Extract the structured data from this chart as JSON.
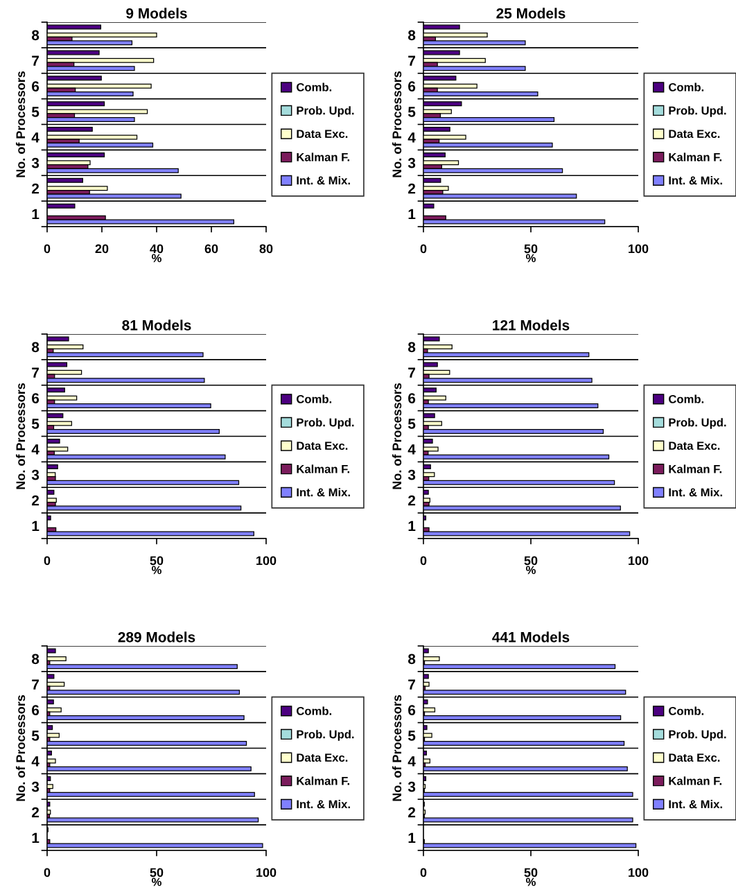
{
  "chart_data": [
    {
      "type": "bar",
      "orientation": "horizontal",
      "title": "9 Models",
      "xlabel": "%",
      "ylabel": "No. of Processors",
      "categories": [
        "8",
        "7",
        "6",
        "5",
        "4",
        "3",
        "2",
        "1"
      ],
      "xlim": [
        0,
        80
      ],
      "xticks": [
        0,
        20,
        40,
        60,
        80
      ],
      "grid": "y",
      "legend": "right",
      "series": [
        {
          "name": "Comb.",
          "color": "#4c0080",
          "values": [
            19.6,
            19.0,
            19.8,
            20.9,
            16.5,
            20.9,
            13.0,
            10.1
          ]
        },
        {
          "name": "Prob. Upd.",
          "color": "#a4dcdc",
          "values": [
            null,
            null,
            null,
            null,
            null,
            null,
            null,
            null
          ]
        },
        {
          "name": "Data Exc.",
          "color": "#ffffcc",
          "values": [
            40.0,
            38.9,
            38.0,
            36.6,
            32.8,
            15.7,
            22.0,
            null
          ]
        },
        {
          "name": "Kalman F.",
          "color": "#7b1c5c",
          "values": [
            9.1,
            9.8,
            10.3,
            10.0,
            11.7,
            14.9,
            15.5,
            21.3
          ]
        },
        {
          "name": "Int. & Mix.",
          "color": "#8080ff",
          "values": [
            31.0,
            31.9,
            31.4,
            31.9,
            38.6,
            47.9,
            48.9,
            68.2
          ]
        }
      ]
    },
    {
      "type": "bar",
      "orientation": "horizontal",
      "title": "25 Models",
      "xlabel": "%",
      "ylabel": "No. of Processors",
      "categories": [
        "8",
        "7",
        "6",
        "5",
        "4",
        "3",
        "2",
        "1"
      ],
      "xlim": [
        0,
        100
      ],
      "xticks": [
        0,
        50,
        100
      ],
      "grid": "y",
      "legend": "right",
      "series": [
        {
          "name": "Comb.",
          "color": "#4c0080",
          "values": [
            16.8,
            16.8,
            15.1,
            17.7,
            12.3,
            10.1,
            8.0,
            4.8
          ]
        },
        {
          "name": "Prob. Upd.",
          "color": "#a4dcdc",
          "values": [
            null,
            null,
            null,
            null,
            null,
            null,
            null,
            null
          ]
        },
        {
          "name": "Data Exc.",
          "color": "#ffffcc",
          "values": [
            29.7,
            28.8,
            24.9,
            13.0,
            19.7,
            16.3,
            11.6,
            null
          ]
        },
        {
          "name": "Kalman F.",
          "color": "#7b1c5c",
          "values": [
            5.6,
            6.5,
            6.5,
            7.9,
            7.3,
            8.5,
            9.0,
            10.4
          ]
        },
        {
          "name": "Int. & Mix.",
          "color": "#8080ff",
          "values": [
            47.4,
            47.4,
            53.2,
            60.8,
            60.0,
            64.7,
            71.2,
            84.4
          ]
        }
      ]
    },
    {
      "type": "bar",
      "orientation": "horizontal",
      "title": "81 Models",
      "xlabel": "%",
      "ylabel": "No. of Processors",
      "categories": [
        "8",
        "7",
        "6",
        "5",
        "4",
        "3",
        "2",
        "1"
      ],
      "xlim": [
        0,
        100
      ],
      "xticks": [
        0,
        50,
        100
      ],
      "grid": "y",
      "legend": "right",
      "series": [
        {
          "name": "Comb.",
          "color": "#4c0080",
          "values": [
            9.8,
            9.0,
            8.0,
            7.2,
            5.7,
            4.8,
            3.1,
            1.6
          ]
        },
        {
          "name": "Prob. Upd.",
          "color": "#a4dcdc",
          "values": [
            null,
            null,
            null,
            null,
            null,
            null,
            null,
            null
          ]
        },
        {
          "name": "Data Exc.",
          "color": "#ffffcc",
          "values": [
            16.4,
            15.7,
            13.5,
            11.2,
            9.4,
            3.7,
            4.2,
            null
          ]
        },
        {
          "name": "Kalman F.",
          "color": "#7b1c5c",
          "values": [
            2.8,
            3.4,
            3.4,
            3.0,
            3.3,
            3.8,
            3.8,
            4.0
          ]
        },
        {
          "name": "Int. & Mix.",
          "color": "#8080ff",
          "values": [
            71.2,
            71.8,
            74.7,
            78.6,
            81.3,
            87.5,
            88.5,
            94.4
          ]
        }
      ]
    },
    {
      "type": "bar",
      "orientation": "horizontal",
      "title": "121 Models",
      "xlabel": "%",
      "ylabel": "No. of Processors",
      "categories": [
        "8",
        "7",
        "6",
        "5",
        "4",
        "3",
        "2",
        "1"
      ],
      "xlim": [
        0,
        100
      ],
      "xticks": [
        0,
        50,
        100
      ],
      "grid": "y",
      "legend": "right",
      "series": [
        {
          "name": "Comb.",
          "color": "#4c0080",
          "values": [
            7.4,
            6.5,
            5.9,
            5.2,
            4.2,
            3.3,
            2.3,
            1.1
          ]
        },
        {
          "name": "Prob. Upd.",
          "color": "#a4dcdc",
          "values": [
            null,
            null,
            null,
            null,
            null,
            null,
            null,
            null
          ]
        },
        {
          "name": "Data Exc.",
          "color": "#ffffcc",
          "values": [
            13.3,
            12.2,
            10.4,
            8.5,
            6.8,
            5.1,
            3.0,
            null
          ]
        },
        {
          "name": "Kalman F.",
          "color": "#7b1c5c",
          "values": [
            1.9,
            2.6,
            2.3,
            2.3,
            2.2,
            2.5,
            2.6,
            2.6
          ]
        },
        {
          "name": "Int. & Mix.",
          "color": "#8080ff",
          "values": [
            77.0,
            78.4,
            81.2,
            83.7,
            86.3,
            88.9,
            91.7,
            96.0
          ]
        }
      ]
    },
    {
      "type": "bar",
      "orientation": "horizontal",
      "title": "289 Models",
      "xlabel": "%",
      "ylabel": "No. of Processors",
      "categories": [
        "8",
        "7",
        "6",
        "5",
        "4",
        "3",
        "2",
        "1"
      ],
      "xlim": [
        0,
        100
      ],
      "xticks": [
        0,
        50,
        100
      ],
      "grid": "y",
      "legend": "right",
      "series": [
        {
          "name": "Comb.",
          "color": "#4c0080",
          "values": [
            3.8,
            3.1,
            2.9,
            2.4,
            2.0,
            1.5,
            1.2,
            0.4
          ]
        },
        {
          "name": "Prob. Upd.",
          "color": "#a4dcdc",
          "values": [
            null,
            null,
            null,
            null,
            null,
            null,
            null,
            null
          ]
        },
        {
          "name": "Data Exc.",
          "color": "#ffffcc",
          "values": [
            8.6,
            7.8,
            6.4,
            5.5,
            3.8,
            2.6,
            1.5,
            null
          ]
        },
        {
          "name": "Kalman F.",
          "color": "#7b1c5c",
          "values": [
            1.2,
            1.2,
            1.2,
            1.2,
            1.2,
            1.2,
            1.1,
            1.2
          ]
        },
        {
          "name": "Int. & Mix.",
          "color": "#8080ff",
          "values": [
            86.8,
            87.8,
            89.9,
            91.0,
            93.1,
            94.7,
            96.4,
            98.4
          ]
        }
      ]
    },
    {
      "type": "bar",
      "orientation": "horizontal",
      "title": "441 Models",
      "xlabel": "%",
      "ylabel": "No. of Processors",
      "categories": [
        "8",
        "7",
        "6",
        "5",
        "4",
        "3",
        "2",
        "1"
      ],
      "xlim": [
        0,
        100
      ],
      "xticks": [
        0,
        50,
        100
      ],
      "grid": "y",
      "legend": "right",
      "series": [
        {
          "name": "Comb.",
          "color": "#4c0080",
          "values": [
            2.3,
            2.3,
            1.9,
            1.6,
            1.4,
            1.1,
            0.4,
            null
          ]
        },
        {
          "name": "Prob. Upd.",
          "color": "#a4dcdc",
          "values": [
            null,
            null,
            null,
            null,
            null,
            null,
            null,
            null
          ]
        },
        {
          "name": "Data Exc.",
          "color": "#ffffcc",
          "values": [
            7.4,
            2.6,
            5.3,
            3.9,
            3.0,
            0.8,
            0.8,
            null
          ]
        },
        {
          "name": "Kalman F.",
          "color": "#7b1c5c",
          "values": [
            0.5,
            0.8,
            0.5,
            0.5,
            0.8,
            0.4,
            0.4,
            0.4
          ]
        },
        {
          "name": "Int. & Mix.",
          "color": "#8080ff",
          "values": [
            89.2,
            94.1,
            91.8,
            93.4,
            94.9,
            97.4,
            97.4,
            98.9
          ]
        }
      ]
    }
  ]
}
